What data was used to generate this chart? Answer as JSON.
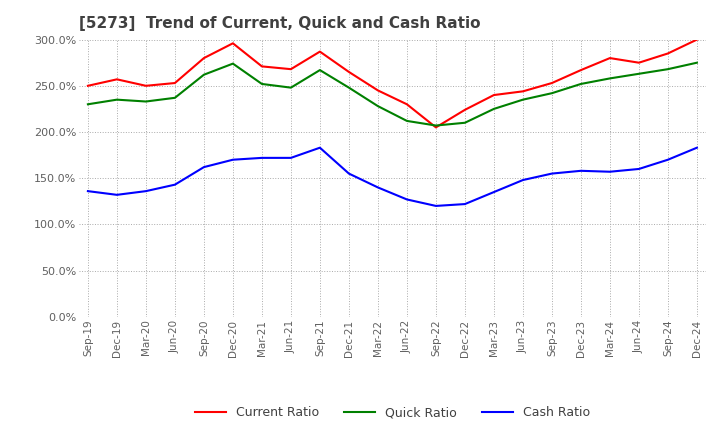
{
  "title": "[5273]  Trend of Current, Quick and Cash Ratio",
  "x_labels": [
    "Sep-19",
    "Dec-19",
    "Mar-20",
    "Jun-20",
    "Sep-20",
    "Dec-20",
    "Mar-21",
    "Jun-21",
    "Sep-21",
    "Dec-21",
    "Mar-22",
    "Jun-22",
    "Sep-22",
    "Dec-22",
    "Mar-23",
    "Jun-23",
    "Sep-23",
    "Dec-23",
    "Mar-24",
    "Jun-24",
    "Sep-24",
    "Dec-24"
  ],
  "current_ratio": [
    250,
    257,
    250,
    253,
    280,
    296,
    271,
    268,
    287,
    265,
    245,
    230,
    205,
    224,
    240,
    244,
    253,
    267,
    280,
    275,
    285,
    300
  ],
  "quick_ratio": [
    230,
    235,
    233,
    237,
    262,
    274,
    252,
    248,
    267,
    248,
    228,
    212,
    207,
    210,
    225,
    235,
    242,
    252,
    258,
    263,
    268,
    275
  ],
  "cash_ratio": [
    136,
    132,
    136,
    143,
    162,
    170,
    172,
    172,
    183,
    155,
    140,
    127,
    120,
    122,
    135,
    148,
    155,
    158,
    157,
    160,
    170,
    183
  ],
  "ylim": [
    0,
    300
  ],
  "yticks": [
    0,
    50,
    100,
    150,
    200,
    250,
    300
  ],
  "current_color": "#FF0000",
  "quick_color": "#008000",
  "cash_color": "#0000FF",
  "bg_color": "#FFFFFF",
  "grid_color": "#AAAAAA",
  "title_color": "#404040",
  "label_color": "#606060",
  "legend_color": "#404040"
}
